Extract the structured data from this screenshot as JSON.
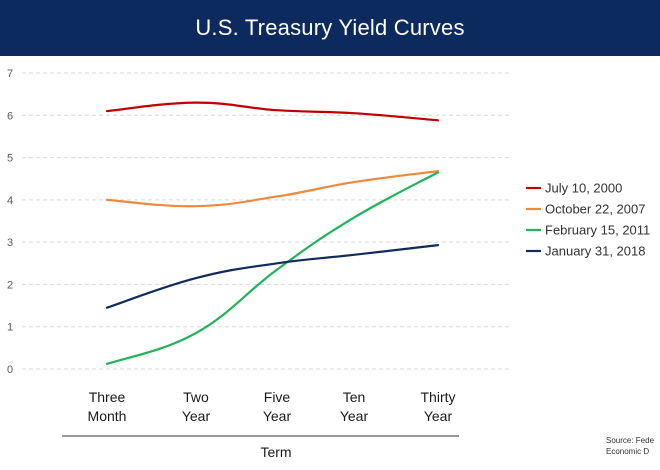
{
  "chart_data": {
    "type": "line",
    "title": "U.S. Treasury Yield Curves",
    "xlabel": "Term",
    "ylabel": "",
    "ylim": [
      0,
      7
    ],
    "yticks": [
      0,
      1,
      2,
      3,
      4,
      5,
      6,
      7
    ],
    "grid": "horizontal dashed",
    "legend_position": "right",
    "categories": [
      [
        "Three",
        "Month"
      ],
      [
        "Two",
        "Year"
      ],
      [
        "Five",
        "Year"
      ],
      [
        "Ten",
        "Year"
      ],
      [
        "Thirty",
        "Year"
      ]
    ],
    "series": [
      {
        "name": "July 10, 2000",
        "color": "#c00000",
        "values": [
          6.1,
          6.3,
          6.12,
          6.05,
          5.88
        ]
      },
      {
        "name": "October 22, 2007",
        "color": "#ed8a3e",
        "values": [
          4.0,
          3.85,
          4.08,
          4.42,
          4.68
        ]
      },
      {
        "name": "February 15, 2011",
        "color": "#1db45a",
        "values": [
          0.12,
          0.85,
          2.35,
          3.58,
          4.65
        ]
      },
      {
        "name": "January 31, 2018",
        "color": "#102a60",
        "values": [
          1.45,
          2.15,
          2.5,
          2.7,
          2.93
        ]
      }
    ],
    "source": [
      "Source:  Fede",
      "Economic D"
    ]
  }
}
